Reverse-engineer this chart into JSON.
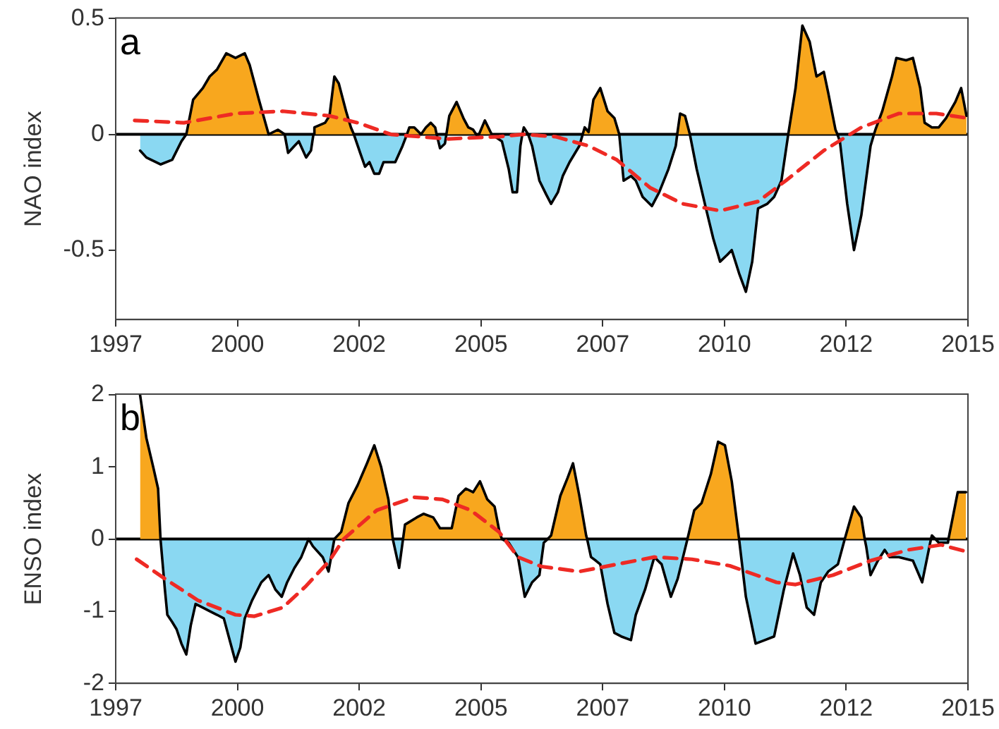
{
  "chart_data": [
    {
      "type": "area",
      "ylabel": "NAO index",
      "annotations": [
        "a"
      ],
      "marker": "none",
      "xlim": [
        1997.5,
        2015
      ],
      "xticks": [
        {
          "value": 1997.5,
          "label": "1997"
        },
        2000,
        {
          "value": 2002.5,
          "label": "2002"
        },
        2005,
        {
          "value": 2007.5,
          "label": "2007"
        },
        2010,
        {
          "value": 2012.5,
          "label": "2012"
        },
        2015
      ],
      "ylim": [
        -0.8,
        0.5
      ],
      "yticks": [
        {
          "value": -0.5,
          "label": "-0.5"
        },
        0,
        0.5
      ],
      "ref_lines": [
        {
          "axis": "y",
          "value": 0,
          "color": "#000000"
        }
      ],
      "x": [
        1998.0,
        1998.13,
        1998.42,
        1998.66,
        1998.85,
        1998.95,
        1999.09,
        1999.29,
        1999.43,
        1999.58,
        1999.77,
        1999.96,
        2000.15,
        2000.25,
        2000.44,
        2000.64,
        2000.83,
        2000.97,
        2001.04,
        2001.17,
        2001.26,
        2001.41,
        2001.51,
        2001.56,
        2001.58,
        2001.8,
        2001.89,
        2001.99,
        2002.08,
        2002.23,
        2002.33,
        2002.39,
        2002.52,
        2002.62,
        2002.71,
        2002.81,
        2002.91,
        2003.0,
        2003.24,
        2003.39,
        2003.48,
        2003.53,
        2003.63,
        2003.77,
        2003.87,
        2003.97,
        2004.06,
        2004.09,
        2004.16,
        2004.26,
        2004.29,
        2004.35,
        2004.5,
        2004.64,
        2004.74,
        2004.84,
        2004.9,
        2004.93,
        2004.96,
        2005.08,
        2005.22,
        2005.43,
        2005.57,
        2005.65,
        2005.74,
        2005.81,
        2005.85,
        2005.88,
        2005.97,
        2006.05,
        2006.2,
        2006.34,
        2006.44,
        2006.58,
        2006.68,
        2006.82,
        2007.02,
        2007.09,
        2007.13,
        2007.21,
        2007.31,
        2007.45,
        2007.6,
        2007.74,
        2007.84,
        2007.93,
        2008.08,
        2008.18,
        2008.32,
        2008.51,
        2008.66,
        2008.85,
        2009.0,
        2009.03,
        2009.09,
        2009.19,
        2009.29,
        2009.43,
        2009.62,
        2009.77,
        2009.91,
        2010.06,
        2010.15,
        2010.3,
        2010.44,
        2010.57,
        2010.69,
        2010.88,
        2011.02,
        2011.17,
        2011.31,
        2011.46,
        2011.6,
        2011.75,
        2011.89,
        2012.04,
        2012.13,
        2012.28,
        2012.32,
        2012.37,
        2012.52,
        2012.66,
        2012.81,
        2013.0,
        2013.07,
        2013.1,
        2013.24,
        2013.44,
        2013.53,
        2013.73,
        2013.87,
        2014.02,
        2014.11,
        2014.26,
        2014.4,
        2014.55,
        2014.74,
        2014.86,
        2014.97
      ],
      "series": [
        {
          "type": "area",
          "color": "#f8a71e",
          "values": [
            null,
            null,
            null,
            null,
            null,
            0,
            0.15,
            0.2,
            0.25,
            0.28,
            0.35,
            0.33,
            0.35,
            0.3,
            0.15,
            0,
            0.02,
            0,
            null,
            null,
            null,
            null,
            null,
            0,
            0.03,
            0.05,
            0.08,
            0.25,
            0.22,
            0.1,
            0.03,
            0,
            null,
            null,
            null,
            null,
            null,
            null,
            null,
            null,
            0,
            0.03,
            0.03,
            0,
            0.03,
            0.05,
            0.03,
            0,
            null,
            null,
            0,
            0.08,
            0.14,
            0.07,
            0.03,
            0.02,
            0,
            null,
            0,
            0.06,
            0,
            null,
            null,
            null,
            null,
            null,
            null,
            null,
            null,
            null,
            null,
            null,
            null,
            null,
            null,
            null,
            null,
            0,
            0.03,
            0.01,
            0.15,
            0.2,
            0.1,
            0.07,
            0,
            null,
            null,
            null,
            null,
            null,
            null,
            null,
            null,
            0,
            0.09,
            0.08,
            0,
            null,
            null,
            null,
            null,
            null,
            null,
            null,
            null,
            null,
            null,
            null,
            null,
            null,
            0,
            0.2,
            0.47,
            0.4,
            0.25,
            0.27,
            0.18,
            0.02,
            0,
            null,
            null,
            null,
            null,
            null,
            0,
            0.02,
            0.1,
            0.25,
            0.33,
            0.32,
            0.33,
            0.2,
            0.05,
            0.03,
            0.03,
            0.07,
            0.14,
            0.2,
            0.08
          ]
        },
        {
          "type": "area",
          "color": "#8ad8f2",
          "values": [
            -0.07,
            -0.1,
            -0.13,
            -0.11,
            -0.03,
            0,
            null,
            null,
            null,
            null,
            null,
            null,
            null,
            null,
            null,
            null,
            null,
            0,
            -0.08,
            -0.05,
            -0.03,
            -0.1,
            -0.07,
            0,
            null,
            null,
            null,
            null,
            null,
            null,
            null,
            0,
            -0.08,
            -0.14,
            -0.12,
            -0.17,
            -0.17,
            -0.12,
            -0.12,
            -0.05,
            0,
            null,
            null,
            null,
            null,
            null,
            null,
            0,
            -0.06,
            -0.04,
            0,
            null,
            null,
            null,
            null,
            null,
            null,
            null,
            null,
            null,
            0,
            -0.03,
            -0.15,
            -0.25,
            -0.25,
            -0.05,
            0,
            null,
            0,
            -0.05,
            -0.2,
            -0.26,
            -0.3,
            -0.25,
            -0.18,
            -0.12,
            -0.05,
            0,
            null,
            null,
            null,
            null,
            null,
            null,
            0,
            -0.2,
            -0.18,
            -0.2,
            -0.27,
            -0.31,
            -0.25,
            -0.15,
            -0.05,
            0,
            null,
            null,
            0,
            -0.15,
            -0.32,
            -0.45,
            -0.55,
            -0.52,
            -0.5,
            -0.6,
            -0.68,
            -0.55,
            -0.32,
            -0.3,
            -0.27,
            -0.2,
            0,
            null,
            null,
            null,
            null,
            null,
            null,
            null,
            0,
            -0.03,
            -0.3,
            -0.5,
            -0.35,
            -0.05,
            0,
            null,
            null,
            null,
            null,
            null,
            null,
            null,
            null,
            null,
            null,
            null,
            null,
            null,
            null
          ]
        },
        {
          "type": "line",
          "color": "#000000",
          "values": [
            -0.07,
            -0.1,
            -0.13,
            -0.11,
            -0.03,
            0,
            0.15,
            0.2,
            0.25,
            0.28,
            0.35,
            0.33,
            0.35,
            0.3,
            0.15,
            0,
            0.02,
            0,
            -0.08,
            -0.05,
            -0.03,
            -0.1,
            -0.07,
            0,
            0.03,
            0.05,
            0.08,
            0.25,
            0.22,
            0.1,
            0.03,
            0,
            -0.08,
            -0.14,
            -0.12,
            -0.17,
            -0.17,
            -0.12,
            -0.12,
            -0.05,
            0,
            0.03,
            0.03,
            0,
            0.03,
            0.05,
            0.03,
            0,
            -0.06,
            -0.04,
            0,
            0.08,
            0.14,
            0.07,
            0.03,
            0.02,
            0,
            -0.01,
            0,
            0.06,
            0,
            -0.03,
            -0.15,
            -0.25,
            -0.25,
            -0.05,
            0,
            0.03,
            0,
            -0.05,
            -0.2,
            -0.26,
            -0.3,
            -0.25,
            -0.18,
            -0.12,
            -0.05,
            0,
            0.03,
            0.01,
            0.15,
            0.2,
            0.1,
            0.07,
            0,
            -0.2,
            -0.18,
            -0.2,
            -0.27,
            -0.31,
            -0.25,
            -0.15,
            -0.05,
            0,
            0.09,
            0.08,
            0,
            -0.15,
            -0.32,
            -0.45,
            -0.55,
            -0.52,
            -0.5,
            -0.6,
            -0.68,
            -0.55,
            -0.32,
            -0.3,
            -0.27,
            -0.2,
            0,
            0.2,
            0.47,
            0.4,
            0.25,
            0.27,
            0.18,
            0.02,
            0,
            -0.03,
            -0.3,
            -0.5,
            -0.35,
            -0.05,
            0,
            0.02,
            0.1,
            0.25,
            0.33,
            0.32,
            0.33,
            0.2,
            0.05,
            0.03,
            0.03,
            0.07,
            0.14,
            0.2,
            0.08
          ]
        },
        {
          "type": "line",
          "color": "#ee2a24",
          "line_style": "dashed",
          "x": [
            1997.89,
            1998.9,
            1999.96,
            2000.93,
            2001.89,
            2002.47,
            2003.15,
            2004.31,
            2005.37,
            2005.86,
            2006.53,
            2007.21,
            2007.79,
            2008.47,
            2009.14,
            2009.91,
            2010.69,
            2011.26,
            2012.04,
            2012.81,
            2013.58,
            2014.35,
            2015.0
          ],
          "values": [
            0.06,
            0.05,
            0.09,
            0.1,
            0.08,
            0.05,
            0.0,
            -0.02,
            -0.01,
            0.0,
            -0.01,
            -0.05,
            -0.11,
            -0.23,
            -0.3,
            -0.33,
            -0.29,
            -0.2,
            -0.07,
            0.03,
            0.09,
            0.09,
            0.07
          ]
        }
      ]
    },
    {
      "type": "area",
      "ylabel": "ENSO index",
      "annotations": [
        "b"
      ],
      "marker": "none",
      "xlim": [
        1997.5,
        2015
      ],
      "xticks": [
        {
          "value": 1997.5,
          "label": "1997"
        },
        2000,
        {
          "value": 2002.5,
          "label": "2002"
        },
        2005,
        {
          "value": 2007.5,
          "label": "2007"
        },
        2010,
        {
          "value": 2012.5,
          "label": "2012"
        },
        2015
      ],
      "ylim": [
        -2,
        2
      ],
      "yticks": [
        -2,
        -1,
        0,
        1,
        2
      ],
      "ref_lines": [
        {
          "axis": "y",
          "value": 0,
          "color": "#000000"
        }
      ],
      "x": [
        1998.0,
        1998.13,
        1998.27,
        1998.37,
        1998.42,
        1998.51,
        1998.56,
        1998.66,
        1998.75,
        1998.85,
        1998.95,
        1999.04,
        1999.14,
        1999.29,
        1999.43,
        1999.58,
        1999.72,
        1999.82,
        1999.96,
        2000.06,
        2000.15,
        2000.3,
        2000.49,
        2000.64,
        2000.78,
        2000.91,
        2001.02,
        2001.17,
        2001.31,
        2001.46,
        2001.55,
        2001.75,
        2001.87,
        2001.99,
        2002.13,
        2002.28,
        2002.47,
        2002.66,
        2002.81,
        2002.95,
        2003.1,
        2003.19,
        2003.32,
        2003.4,
        2003.44,
        2003.68,
        2003.82,
        2004.02,
        2004.16,
        2004.4,
        2004.54,
        2004.69,
        2004.84,
        2004.98,
        2005.13,
        2005.28,
        2005.38,
        2005.43,
        2005.57,
        2005.76,
        2005.9,
        2006.05,
        2006.2,
        2006.29,
        2006.37,
        2006.44,
        2006.63,
        2006.78,
        2006.89,
        2007.02,
        2007.16,
        2007.18,
        2007.26,
        2007.36,
        2007.45,
        2007.6,
        2007.74,
        2007.88,
        2008.08,
        2008.18,
        2008.37,
        2008.56,
        2008.71,
        2008.9,
        2009.04,
        2009.24,
        2009.38,
        2009.53,
        2009.72,
        2009.87,
        2010.01,
        2010.15,
        2010.3,
        2010.44,
        2010.64,
        2010.83,
        2011.02,
        2011.22,
        2011.41,
        2011.55,
        2011.69,
        2011.84,
        2011.98,
        2012.13,
        2012.33,
        2012.47,
        2012.66,
        2012.81,
        2012.88,
        2012.91,
        2013.0,
        2013.15,
        2013.29,
        2013.39,
        2013.58,
        2013.87,
        2014.06,
        2014.24,
        2014.26,
        2014.33,
        2014.4,
        2014.59,
        2014.6,
        2014.79,
        2014.96
      ],
      "series": [
        {
          "type": "area",
          "color": "#f8a71e",
          "values": [
            2.0,
            1.4,
            1.0,
            0.7,
            0,
            null,
            null,
            null,
            null,
            null,
            null,
            null,
            null,
            null,
            null,
            null,
            null,
            null,
            null,
            null,
            null,
            null,
            null,
            null,
            null,
            null,
            null,
            null,
            null,
            null,
            null,
            null,
            null,
            0,
            0.1,
            0.5,
            0.75,
            1.05,
            1.3,
            1.0,
            0.55,
            0,
            null,
            0,
            0.2,
            0.3,
            0.35,
            0.3,
            0.15,
            0.15,
            0.6,
            0.7,
            0.65,
            0.8,
            0.55,
            0.45,
            0.1,
            0,
            null,
            null,
            null,
            null,
            null,
            null,
            0,
            0.05,
            0.6,
            0.85,
            1.05,
            0.6,
            0.05,
            0,
            null,
            null,
            null,
            null,
            null,
            null,
            null,
            null,
            null,
            null,
            null,
            null,
            null,
            0,
            0.4,
            0.5,
            0.9,
            1.35,
            1.3,
            0.8,
            0,
            null,
            null,
            null,
            null,
            null,
            null,
            null,
            null,
            null,
            null,
            null,
            null,
            0,
            0.45,
            0.3,
            0,
            null,
            null,
            null,
            null,
            null,
            null,
            null,
            null,
            null,
            null,
            null,
            null,
            null,
            0,
            0.65,
            0.65
          ]
        },
        {
          "type": "area",
          "color": "#8ad8f2",
          "values": [
            null,
            null,
            null,
            null,
            0,
            -0.7,
            -1.05,
            -1.15,
            -1.25,
            -1.45,
            -1.6,
            -1.2,
            -0.9,
            -0.95,
            -1.0,
            -1.05,
            -1.1,
            -1.35,
            -1.7,
            -1.5,
            -1.1,
            -0.85,
            -0.6,
            -0.5,
            -0.7,
            -0.8,
            -0.6,
            -0.4,
            -0.25,
            0,
            -0.1,
            -0.25,
            -0.45,
            0,
            null,
            null,
            null,
            null,
            null,
            null,
            null,
            0,
            -0.4,
            0,
            null,
            null,
            null,
            null,
            null,
            null,
            null,
            null,
            null,
            null,
            null,
            null,
            null,
            0,
            -0.05,
            -0.25,
            -0.8,
            -0.6,
            -0.5,
            -0.05,
            0,
            null,
            null,
            null,
            null,
            null,
            null,
            0,
            -0.25,
            -0.3,
            -0.35,
            -0.9,
            -1.3,
            -1.35,
            -1.4,
            -1.05,
            -0.7,
            -0.25,
            -0.35,
            -0.8,
            -0.55,
            0,
            null,
            null,
            null,
            null,
            null,
            null,
            0,
            -0.8,
            -1.45,
            -1.4,
            -1.35,
            -0.7,
            -0.2,
            -0.5,
            -0.95,
            -1.05,
            -0.6,
            -0.45,
            -0.35,
            0,
            null,
            null,
            0,
            -0.1,
            -0.5,
            -0.3,
            -0.15,
            -0.25,
            -0.25,
            -0.3,
            -0.6,
            0,
            null,
            0,
            -0.05,
            -0.05,
            0,
            null,
            null
          ]
        },
        {
          "type": "line",
          "color": "#000000",
          "values": [
            2.0,
            1.4,
            1.0,
            0.7,
            0,
            -0.7,
            -1.05,
            -1.15,
            -1.25,
            -1.45,
            -1.6,
            -1.2,
            -0.9,
            -0.95,
            -1.0,
            -1.05,
            -1.1,
            -1.35,
            -1.7,
            -1.5,
            -1.1,
            -0.85,
            -0.6,
            -0.5,
            -0.7,
            -0.8,
            -0.6,
            -0.4,
            -0.25,
            0,
            -0.1,
            -0.25,
            -0.45,
            0,
            0.1,
            0.5,
            0.75,
            1.05,
            1.3,
            1.0,
            0.55,
            0,
            -0.4,
            0,
            0.2,
            0.3,
            0.35,
            0.3,
            0.15,
            0.15,
            0.6,
            0.7,
            0.65,
            0.8,
            0.55,
            0.45,
            0.1,
            0,
            -0.05,
            -0.25,
            -0.8,
            -0.6,
            -0.5,
            -0.05,
            0,
            0.05,
            0.6,
            0.85,
            1.05,
            0.6,
            0.05,
            0,
            -0.25,
            -0.3,
            -0.35,
            -0.9,
            -1.3,
            -1.35,
            -1.4,
            -1.05,
            -0.7,
            -0.25,
            -0.35,
            -0.8,
            -0.55,
            0,
            0.4,
            0.5,
            0.9,
            1.35,
            1.3,
            0.8,
            0,
            -0.8,
            -1.45,
            -1.4,
            -1.35,
            -0.7,
            -0.2,
            -0.5,
            -0.95,
            -1.05,
            -0.6,
            -0.45,
            -0.35,
            0,
            0.45,
            0.3,
            0,
            -0.1,
            -0.5,
            -0.3,
            -0.15,
            -0.25,
            -0.25,
            -0.3,
            -0.6,
            0,
            0.05,
            0,
            -0.05,
            -0.05,
            0,
            0.65,
            0.65
          ]
        },
        {
          "type": "line",
          "color": "#ee2a24",
          "line_style": "dashed",
          "x": [
            1997.93,
            1998.51,
            1999.19,
            1999.96,
            2000.35,
            2000.93,
            2001.41,
            2001.89,
            2002.18,
            2002.86,
            2003.63,
            2004.21,
            2004.79,
            2005.37,
            2005.76,
            2006.24,
            2007.02,
            2007.79,
            2008.56,
            2009.33,
            2010.11,
            2011.07,
            2011.46,
            2012.23,
            2013.0,
            2013.77,
            2014.45,
            2015.0
          ],
          "values": [
            -0.28,
            -0.55,
            -0.85,
            -1.05,
            -1.07,
            -0.95,
            -0.65,
            -0.3,
            0.0,
            0.4,
            0.58,
            0.55,
            0.4,
            0.1,
            -0.25,
            -0.38,
            -0.45,
            -0.35,
            -0.25,
            -0.28,
            -0.37,
            -0.6,
            -0.63,
            -0.5,
            -0.3,
            -0.15,
            -0.08,
            -0.18
          ]
        }
      ]
    }
  ]
}
